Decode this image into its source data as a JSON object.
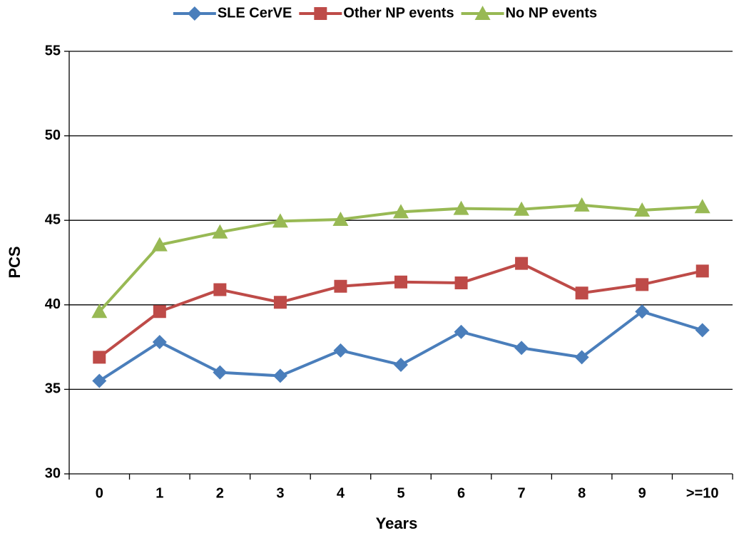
{
  "chart_data": {
    "type": "line",
    "categories": [
      "0",
      "1",
      "2",
      "3",
      "4",
      "5",
      "6",
      "7",
      "8",
      "9",
      ">=10"
    ],
    "series": [
      {
        "name": "SLE CerVE",
        "color": "#4a7ebb",
        "marker": "diamond",
        "values": [
          35.5,
          37.8,
          36.0,
          35.8,
          37.3,
          36.45,
          38.4,
          37.45,
          36.9,
          39.6,
          38.5
        ]
      },
      {
        "name": "Other NP events",
        "color": "#be4b48",
        "marker": "square",
        "values": [
          36.9,
          39.6,
          40.9,
          40.15,
          41.1,
          41.35,
          41.3,
          42.45,
          40.7,
          41.2,
          42.0
        ]
      },
      {
        "name": "No NP events",
        "color": "#98b954",
        "marker": "triangle",
        "values": [
          39.6,
          43.55,
          44.3,
          44.95,
          45.05,
          45.5,
          45.7,
          45.65,
          45.9,
          45.6,
          45.8
        ]
      }
    ],
    "ylim": [
      30,
      55
    ],
    "yticks": [
      30,
      35,
      40,
      45,
      50,
      55
    ],
    "grid": true,
    "x_label": "Years",
    "y_label": "PCS",
    "legend": "top"
  }
}
